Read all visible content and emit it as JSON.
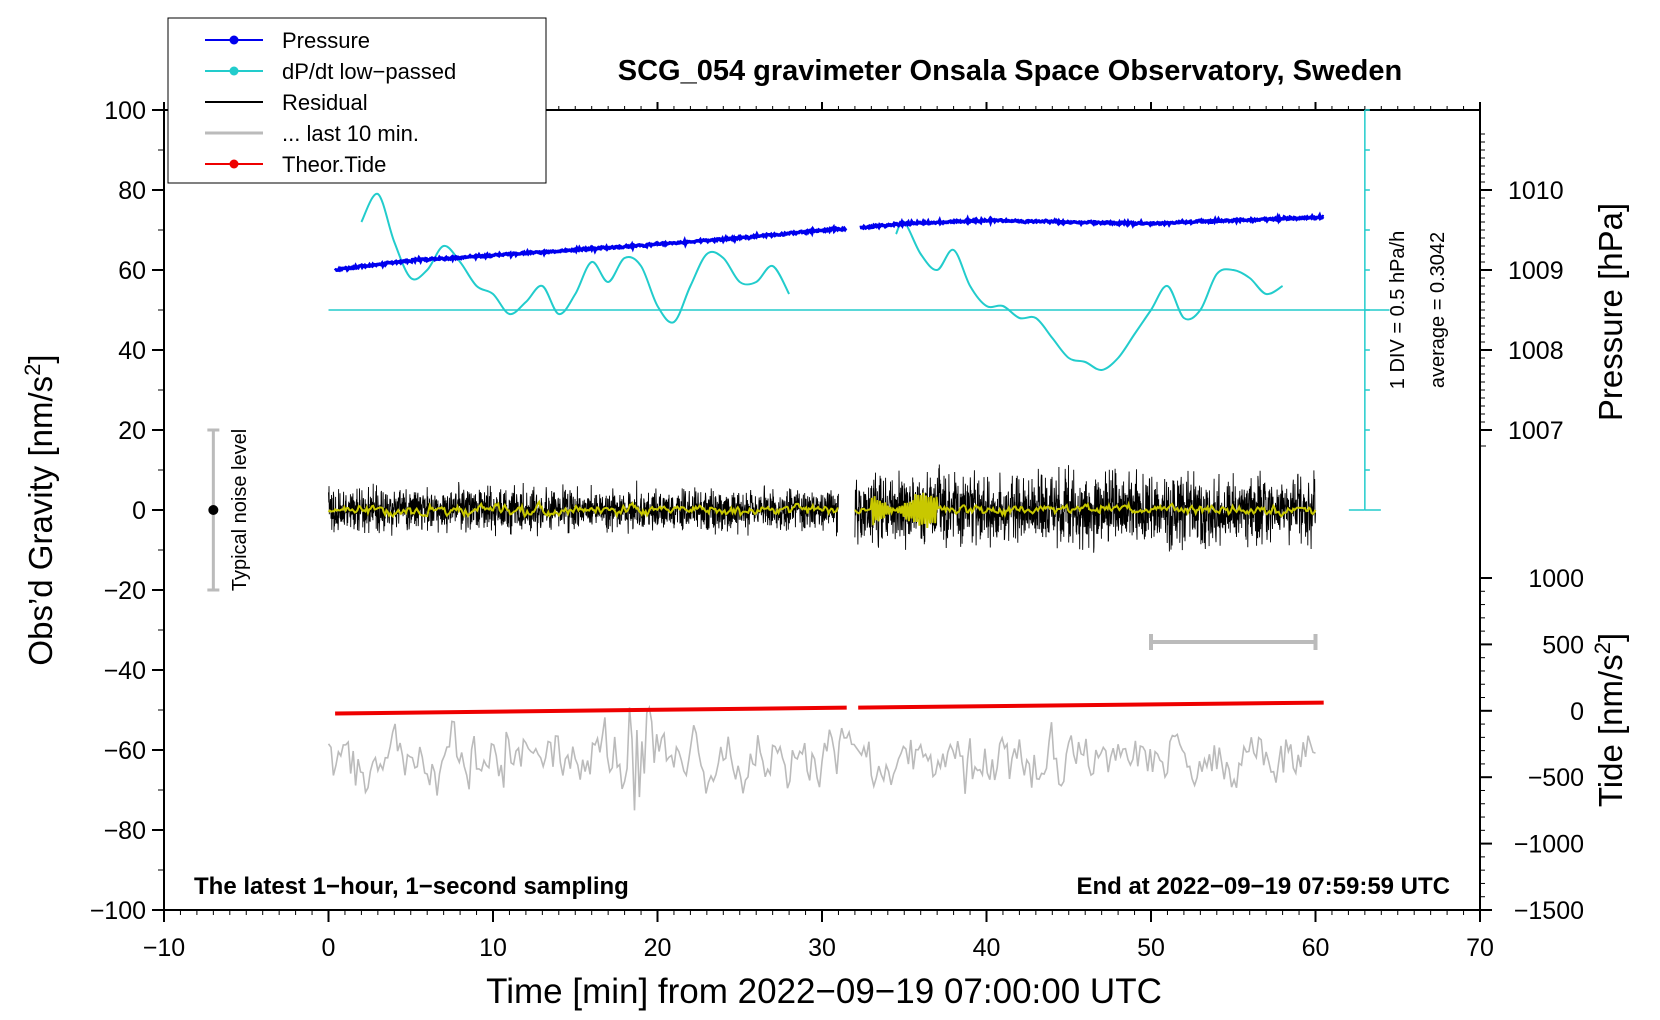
{
  "chart_data": {
    "type": "line",
    "title": "SCG_054 gravimeter Onsala Space Observatory, Sweden",
    "xlabel": "Time [min] from 2022−09−19 07:00:00 UTC",
    "ylabel": "Obs’d Gravity [nm/s",
    "ylabel_sup": "2",
    "ylabel_end": "]",
    "pressure_label": "Pressure [hPa]",
    "tide_label": "Tide [nm/s",
    "tide_label_sup": "2",
    "tide_label_end": "]",
    "xlim": [
      -10,
      70
    ],
    "ylim": [
      -100,
      100
    ],
    "xticks": [
      "−10",
      "0",
      "10",
      "20",
      "30",
      "40",
      "50",
      "60",
      "70"
    ],
    "xtick_values": [
      -10,
      0,
      10,
      20,
      30,
      40,
      50,
      60,
      70
    ],
    "yticks": [
      "−100",
      "−80",
      "−60",
      "−40",
      "−20",
      "0",
      "20",
      "40",
      "60",
      "80",
      "100"
    ],
    "ytick_values": [
      -100,
      -80,
      -60,
      -40,
      -20,
      0,
      20,
      40,
      60,
      80,
      100
    ],
    "pressure_ticks": [
      "1007",
      "1008",
      "1009",
      "1010"
    ],
    "pressure_tick_values": [
      1007,
      1008,
      1009,
      1010
    ],
    "pressure_axis": {
      "hpa_ref": 1009,
      "at_gravity": 60,
      "gravity_per_hpa": 20
    },
    "tide_ticks": [
      "1000",
      "500",
      "0",
      "−500",
      "−1000",
      "−1500"
    ],
    "tide_tick_values": [
      1000,
      500,
      0,
      -500,
      -1000,
      -1500
    ],
    "tide_axis": {
      "range": [
        -1500,
        1000
      ],
      "gravity_range": [
        -100,
        -17
      ]
    },
    "legend": [
      {
        "label": "Pressure",
        "color": "#0000ee",
        "marker": true
      },
      {
        "label": "dP/dt low−passed",
        "color": "#22cccc",
        "marker": true
      },
      {
        "label": "Residual",
        "color": "#000000",
        "marker": false
      },
      {
        "label": "... last 10 min.",
        "color": "#bbbbbb",
        "marker": false
      },
      {
        "label": "Theor.Tide",
        "color": "#ee0000",
        "marker": true
      }
    ],
    "dpdt_scale": {
      "div_label": "1 DIV = 0.5 hPa/h",
      "average_label": "average = 0.3042",
      "x": 63,
      "y_range": [
        0,
        100
      ],
      "divisions": 10,
      "baseline": 50
    },
    "noise_bar": {
      "label": "Typical noise level",
      "x": -7,
      "center": 0,
      "range": [
        -20,
        20
      ]
    },
    "gray_scale_bar": {
      "x_range": [
        50,
        60
      ],
      "y": -33
    },
    "footer_left": "The latest 1−hour, 1−second sampling",
    "footer_right": "End at 2022−09−19 07:59:59 UTC",
    "series": [
      {
        "name": "Pressure",
        "color": "#0000ee",
        "unit": "hPa",
        "segments": [
          {
            "x": [
              0.4,
              5,
              10,
              15,
              20,
              25,
              29,
              31.5
            ],
            "y": [
              1009.0,
              1009.12,
              1009.18,
              1009.25,
              1009.32,
              1009.4,
              1009.48,
              1009.52
            ]
          },
          {
            "x": [
              32.3,
              35,
              40,
              45,
              50,
              55,
              60.5
            ],
            "y": [
              1009.53,
              1009.58,
              1009.62,
              1009.6,
              1009.58,
              1009.62,
              1009.66
            ]
          }
        ]
      },
      {
        "name": "dP/dt low−passed",
        "color": "#22cccc",
        "unit": "nm/s2 plot scale",
        "segments": [
          {
            "x": [
              2,
              3,
              4,
              5,
              6,
              7,
              8,
              9,
              10,
              11,
              12,
              13,
              14,
              15,
              16,
              17,
              18,
              19,
              20,
              21,
              22,
              23,
              24,
              25,
              26,
              27,
              28
            ],
            "y": [
              72,
              79,
              67,
              58,
              60,
              66,
              62,
              56,
              54,
              49,
              52,
              56,
              49,
              54,
              62,
              57,
              63,
              61,
              51,
              47,
              56,
              64,
              63,
              57,
              57,
              61,
              54
            ]
          },
          {
            "x": [
              34.5,
              35,
              36,
              37,
              38,
              39,
              40,
              41,
              42,
              43,
              44,
              45,
              46,
              47,
              48,
              49,
              50,
              51,
              52,
              53,
              54,
              55,
              56,
              57,
              58
            ],
            "y": [
              69,
              72,
              64,
              60,
              65,
              56,
              51,
              51,
              48,
              48,
              43,
              38,
              37,
              35,
              38,
              44,
              50,
              56,
              48,
              50,
              59,
              60,
              58,
              54,
              56
            ]
          }
        ]
      },
      {
        "name": "Residual",
        "color": "#000000",
        "unit": "nm/s2",
        "segments": [
          {
            "x_range": [
              0,
              31
            ]
          },
          {
            "x_range": [
              32,
              60
            ]
          }
        ],
        "envelope_pm": [
          {
            "x_range": [
              0,
              31
            ],
            "amplitude": 5
          },
          {
            "x_range": [
              32,
              60
            ],
            "amplitude": 8
          }
        ]
      },
      {
        "name": "Residual smoothed",
        "color": "#c8c800",
        "unit": "nm/s2",
        "segments": [
          {
            "x_range": [
              0,
              31
            ]
          },
          {
            "x_range": [
              32,
              60
            ]
          }
        ],
        "envelope_pm": [
          {
            "x_range": [
              0,
              31
            ],
            "amplitude": 1.5
          },
          {
            "x_range": [
              32,
              60
            ],
            "amplitude": 1.5
          },
          {
            "x_range": [
              33,
              37
            ],
            "amplitude": 5
          }
        ]
      },
      {
        "name": "... last 10 min.",
        "color": "#bbbbbb",
        "unit": "nm/s2",
        "segments": [
          {
            "x_range": [
              0,
              60
            ]
          }
        ],
        "center": -62,
        "envelope_pm": [
          {
            "x_range": [
              0,
              60
            ],
            "amplitude": 6
          },
          {
            "x_range": [
              17,
              20
            ],
            "amplitude": 12
          }
        ]
      },
      {
        "name": "Theor.Tide",
        "color": "#ee0000",
        "unit": "nm/s2 tide",
        "segments": [
          {
            "x": [
              0.4,
              31.5
            ],
            "y": [
              -20,
              24
            ]
          },
          {
            "x": [
              32.2,
              60.5
            ],
            "y": [
              24,
              62
            ]
          }
        ]
      }
    ]
  }
}
